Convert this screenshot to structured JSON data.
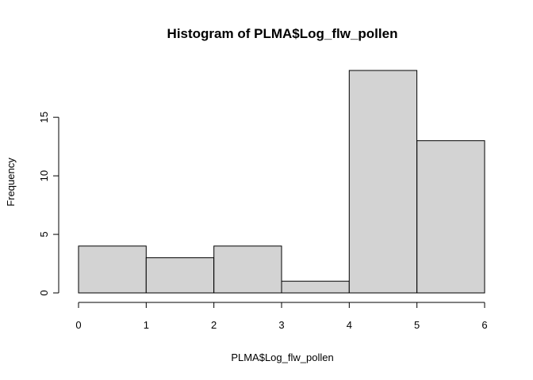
{
  "chart_data": {
    "type": "bar",
    "title": "Histogram of PLMA$Log_flw_pollen",
    "xlabel": "PLMA$Log_flw_pollen",
    "ylabel": "Frequency",
    "bins": [
      {
        "from": 0,
        "to": 1,
        "count": 4
      },
      {
        "from": 1,
        "to": 2,
        "count": 3
      },
      {
        "from": 2,
        "to": 3,
        "count": 4
      },
      {
        "from": 3,
        "to": 4,
        "count": 1
      },
      {
        "from": 4,
        "to": 5,
        "count": 19
      },
      {
        "from": 5,
        "to": 6,
        "count": 13
      }
    ],
    "xlim": [
      0,
      6
    ],
    "ylim": [
      0,
      19
    ],
    "x_ticks": [
      0,
      1,
      2,
      3,
      4,
      5,
      6
    ],
    "y_ticks": [
      0,
      5,
      10,
      15
    ],
    "bar_fill": "#d3d3d3",
    "grid": false,
    "legend": "none"
  }
}
